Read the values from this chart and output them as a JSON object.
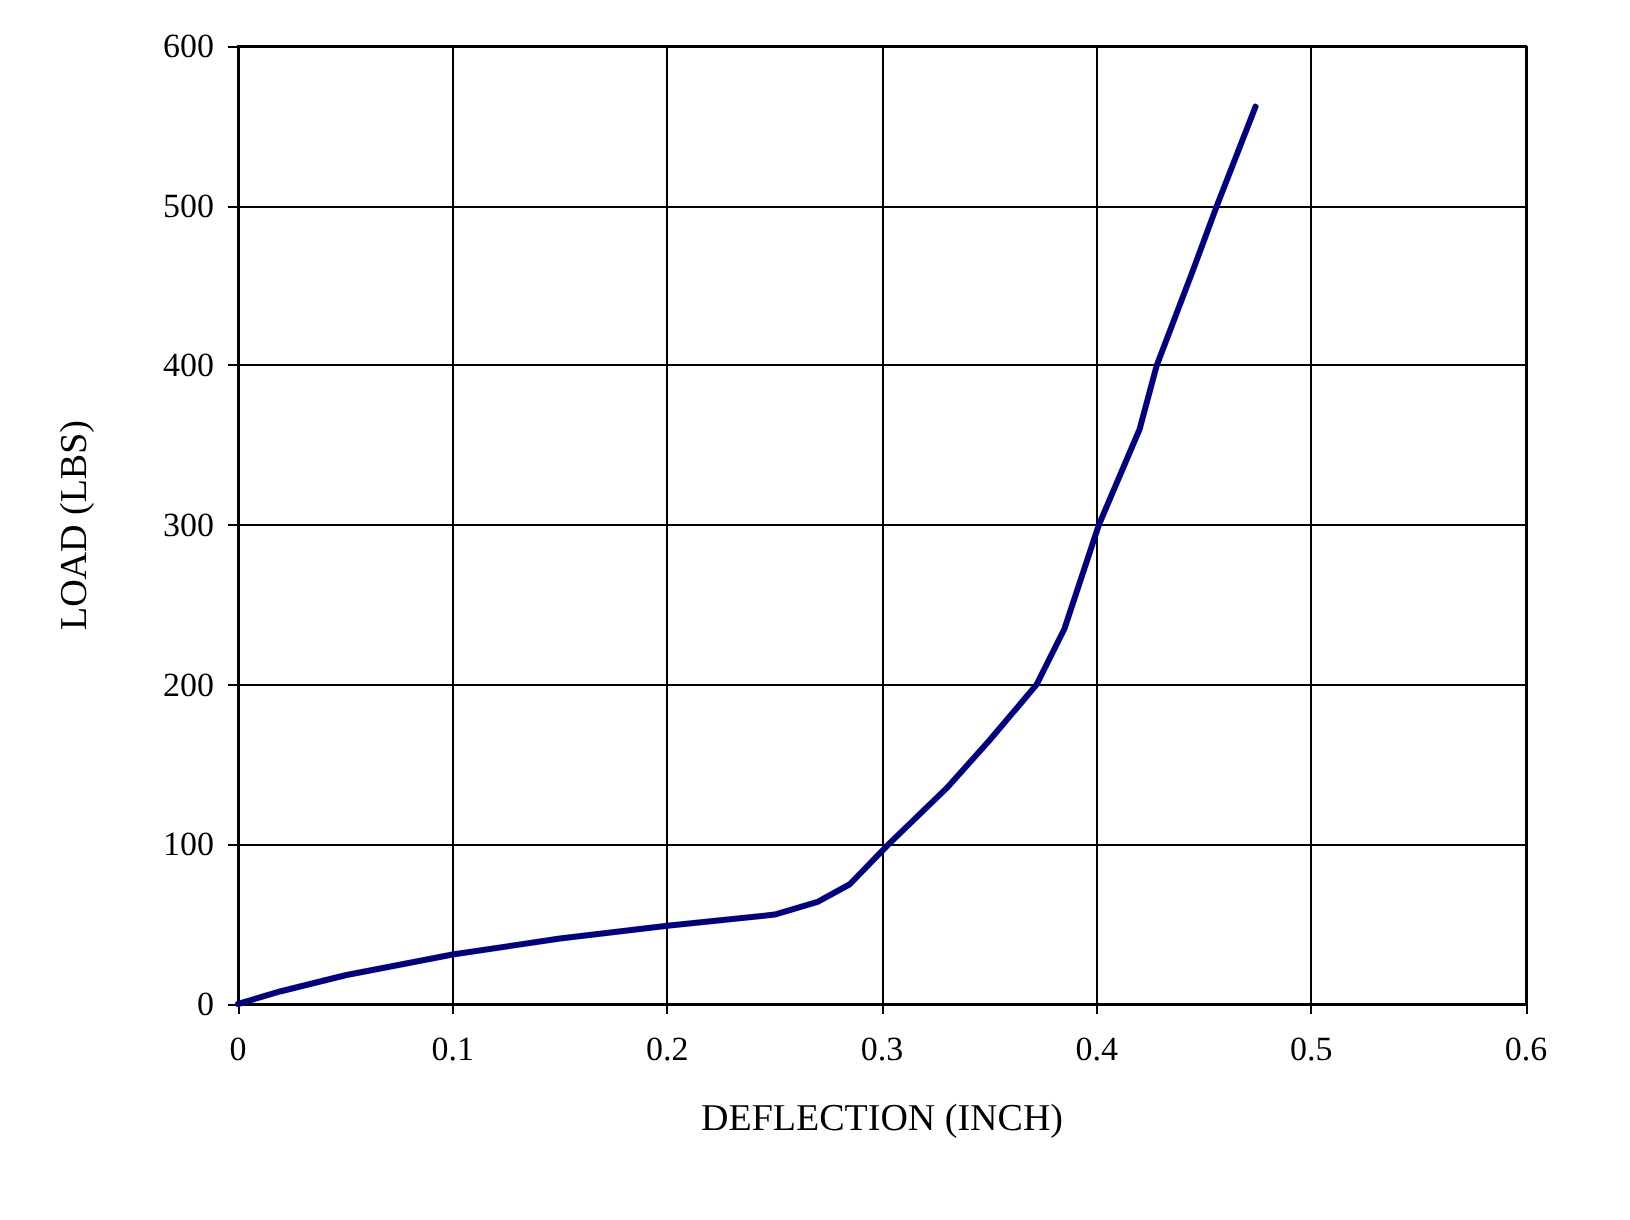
{
  "chart_data": {
    "type": "line",
    "xlabel": "DEFLECTION (INCH)",
    "ylabel": "LOAD (LBS)",
    "x": [
      0,
      0.02,
      0.05,
      0.1,
      0.15,
      0.2,
      0.25,
      0.27,
      0.285,
      0.303,
      0.33,
      0.35,
      0.372,
      0.385,
      0.401,
      0.42,
      0.428,
      0.445,
      0.456,
      0.474
    ],
    "series": [
      {
        "color": "#000080",
        "values": [
          0,
          8,
          18,
          31,
          41,
          49,
          56,
          64,
          75,
          100,
          135,
          165,
          200,
          235,
          300,
          360,
          400,
          460,
          500,
          562
        ]
      }
    ],
    "xlim": [
      0,
      0.6
    ],
    "xticks": [
      0,
      0.1,
      0.2,
      0.3,
      0.4,
      0.5,
      0.6
    ],
    "ylim": [
      0,
      600
    ],
    "yticks": [
      0,
      100,
      200,
      300,
      400,
      500,
      600
    ],
    "grid": true,
    "marker": "none",
    "line_style": "solid"
  }
}
